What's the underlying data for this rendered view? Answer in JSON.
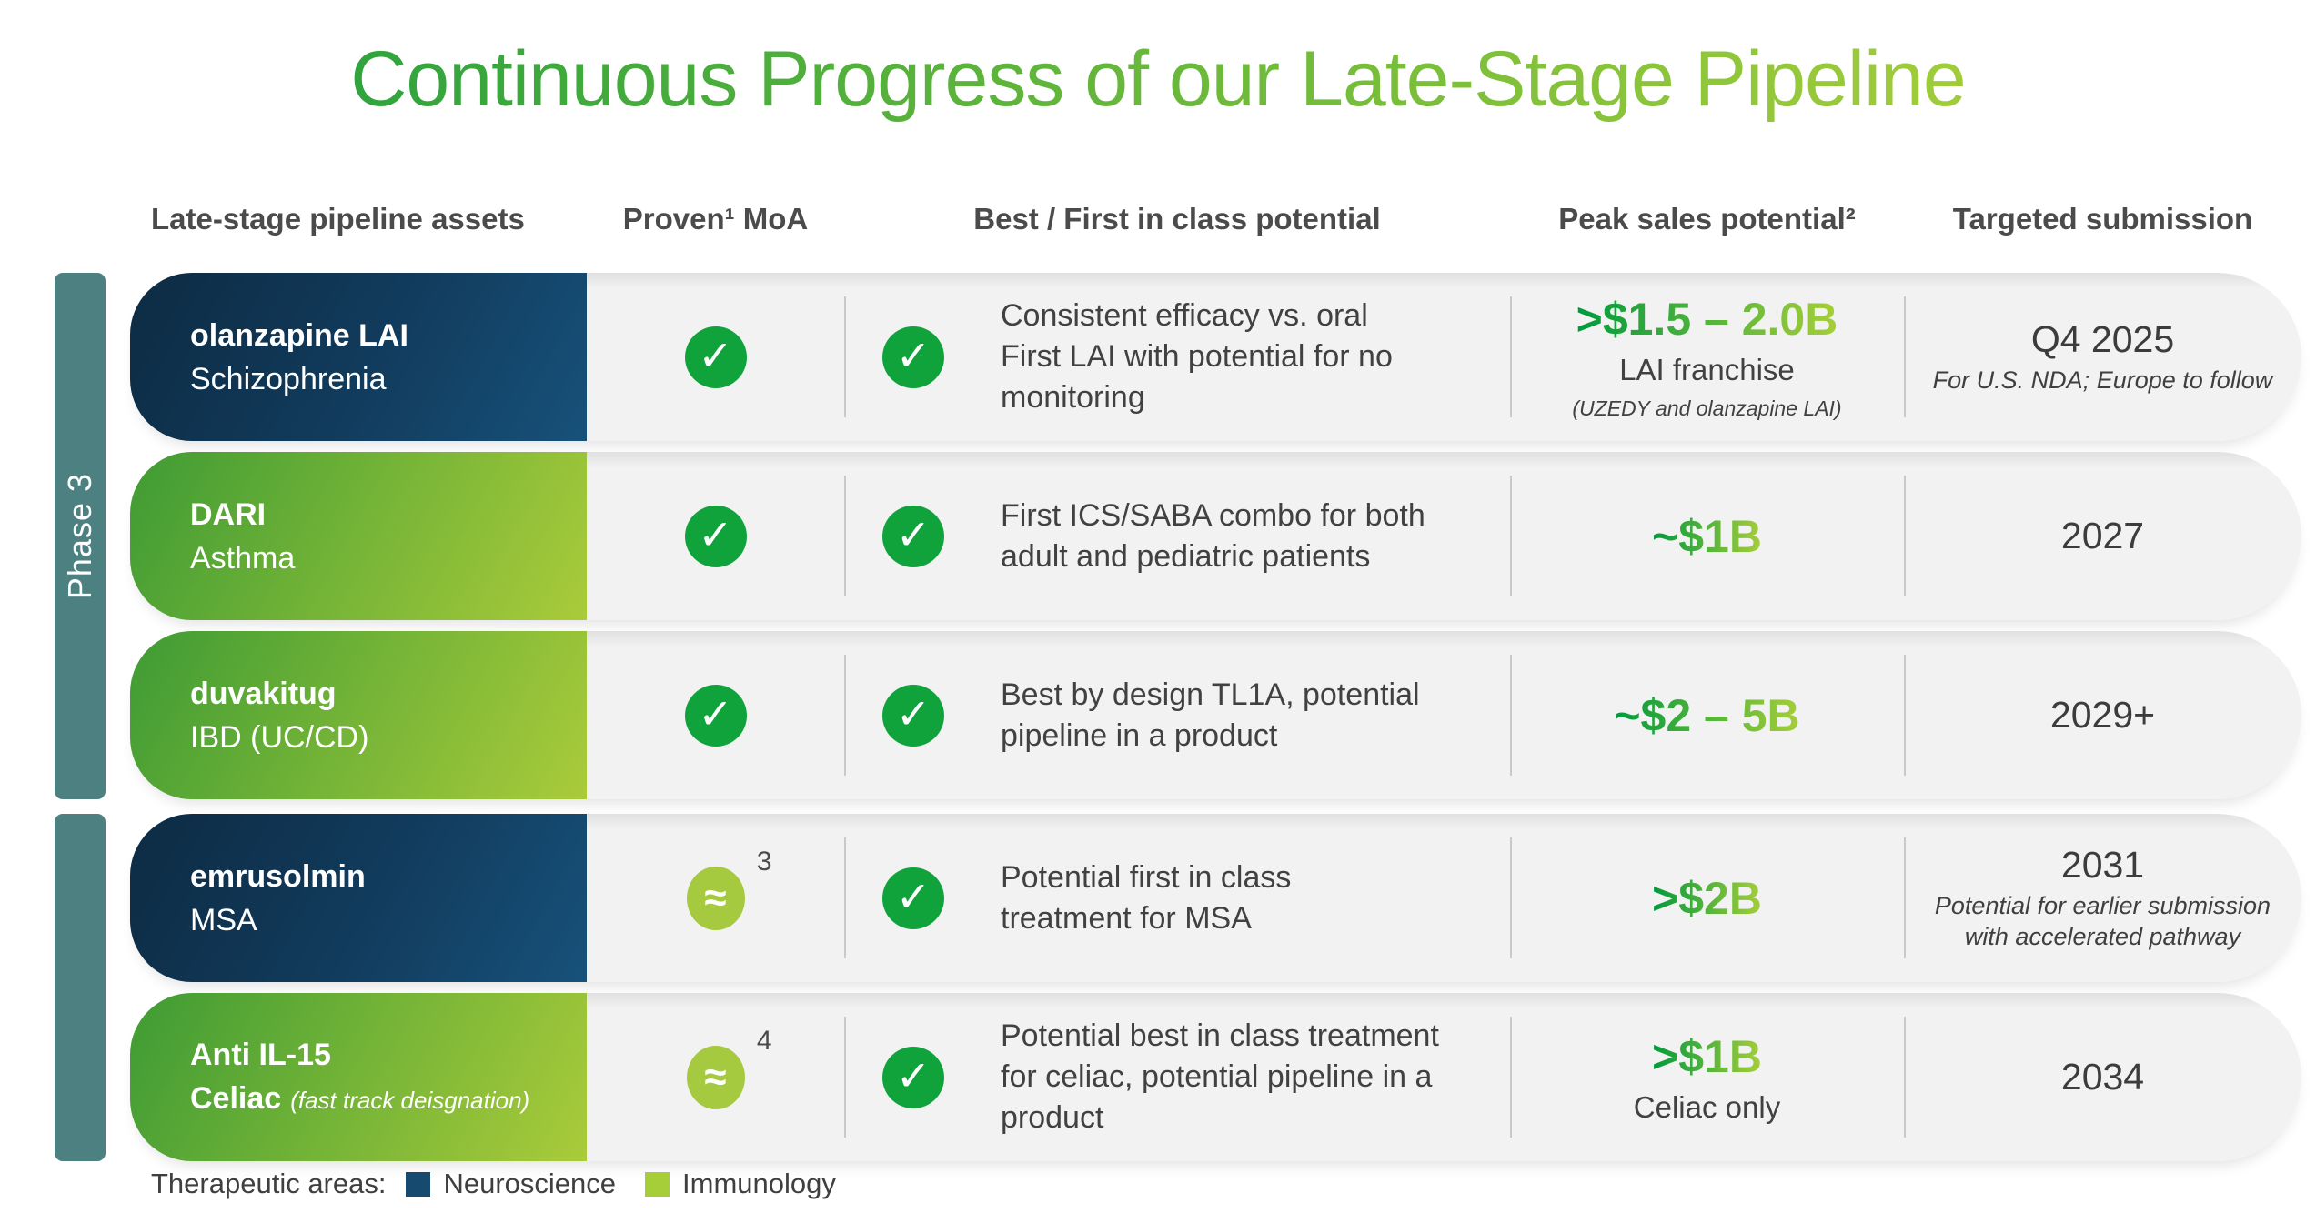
{
  "title": "Continuous Progress of our Late-Stage Pipeline",
  "headers": {
    "assets": "Late-stage pipeline assets",
    "moa": "Proven¹ MoA",
    "best_first": "Best / First in class potential",
    "peak_sales": "Peak sales potential²",
    "submission": "Targeted submission"
  },
  "phase_group": {
    "label": "Phase 3"
  },
  "rows": [
    {
      "asset": "olanzapine LAI",
      "indication": "Schizophrenia",
      "therapeutic_area": "Neuroscience",
      "moa": "check",
      "best_first_check": "check",
      "best_first": {
        "line1": "Consistent efficacy vs. oral",
        "line2": "First LAI with potential for no",
        "line3": "monitoring"
      },
      "peak_sales": {
        "amount": ">$1.5 – 2.0B",
        "label": "LAI franchise",
        "note": "(UZEDY and olanzapine LAI)"
      },
      "submission": {
        "date": "Q4 2025",
        "note": "For U.S. NDA; Europe to follow"
      }
    },
    {
      "asset": "DARI",
      "indication": "Asthma",
      "therapeutic_area": "Immunology",
      "moa": "check",
      "best_first_check": "check",
      "best_first": {
        "line1": "First ICS/SABA combo for both",
        "line2": "adult and pediatric patients"
      },
      "peak_sales": {
        "amount": "~$1B"
      },
      "submission": {
        "date": "2027"
      }
    },
    {
      "asset": "duvakitug",
      "indication": "IBD (UC/CD)",
      "therapeutic_area": "Immunology",
      "moa": "check",
      "best_first_check": "check",
      "best_first": {
        "line1": "Best by design TL1A, potential",
        "line2": "pipeline in a product"
      },
      "peak_sales": {
        "amount": "~$2 – 5B"
      },
      "submission": {
        "date": "2029+"
      }
    },
    {
      "asset": "emrusolmin",
      "indication": "MSA",
      "therapeutic_area": "Neuroscience",
      "moa": "approx",
      "moa_note": "3",
      "best_first_check": "check",
      "best_first": {
        "line1": "Potential first in class",
        "line2": "treatment for MSA"
      },
      "peak_sales": {
        "amount": ">$2B"
      },
      "submission": {
        "date": "2031",
        "note": "Potential for earlier submission with accelerated pathway"
      }
    },
    {
      "asset": "Anti IL-15",
      "indication": "Celiac",
      "indication_note": "(fast track deisgnation)",
      "therapeutic_area": "Immunology",
      "moa": "approx",
      "moa_note": "4",
      "best_first_check": "check",
      "best_first": {
        "line1": "Potential best in class treatment",
        "line2": "for celiac, potential pipeline in a",
        "line3": "product"
      },
      "peak_sales": {
        "amount": ">$1B",
        "label": "Celiac only"
      },
      "submission": {
        "date": "2034"
      }
    }
  ],
  "legend": {
    "label": "Therapeutic areas:",
    "items": [
      {
        "name": "Neuroscience",
        "color": "#164a6e"
      },
      {
        "name": "Immunology",
        "color": "#a6ce39"
      }
    ]
  },
  "colors": {
    "title_gradient": [
      "#2ba23d",
      "#a6ce39"
    ],
    "neuroscience_gradient": [
      "#0d2b43",
      "#17517a"
    ],
    "immunology_gradient": [
      "#3e9b34",
      "#aacb3a"
    ],
    "phase_bar": "#4d8181",
    "check_green": "#10a33c",
    "approx_lime": "#a5c93f",
    "amount_gradient": [
      "#009a3d",
      "#a6ce39"
    ],
    "row_background": "#f2f2f2"
  }
}
